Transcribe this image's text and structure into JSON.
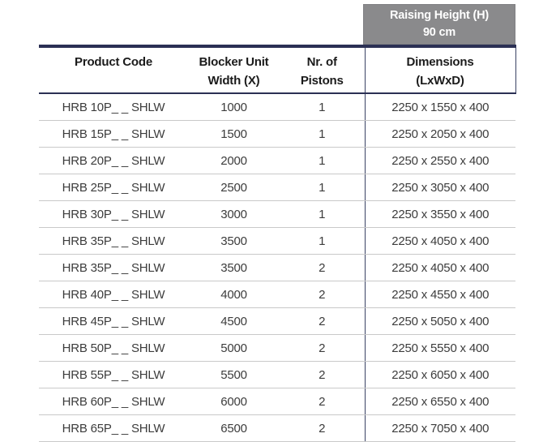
{
  "raising_box": {
    "title": "Raising Height (H)",
    "value": "90 cm"
  },
  "table": {
    "columns": [
      {
        "label": "Product Code"
      },
      {
        "label": "Blocker Unit\nWidth (X)"
      },
      {
        "label": "Nr. of\nPistons"
      },
      {
        "label": "Dimensions\n(LxWxD)"
      }
    ],
    "rows": [
      [
        "HRB 10P_ _ SHLW",
        "1000",
        "1",
        "2250 x 1550 x 400"
      ],
      [
        "HRB 15P_ _ SHLW",
        "1500",
        "1",
        "2250 x 2050 x 400"
      ],
      [
        "HRB 20P_ _ SHLW",
        "2000",
        "1",
        "2250 x 2550 x 400"
      ],
      [
        "HRB 25P_ _ SHLW",
        "2500",
        "1",
        "2250 x 3050 x 400"
      ],
      [
        "HRB 30P_ _ SHLW",
        "3000",
        "1",
        "2250 x 3550 x 400"
      ],
      [
        "HRB 35P_ _ SHLW",
        "3500",
        "1",
        "2250 x 4050 x 400"
      ],
      [
        "HRB 35P_ _ SHLW",
        "3500",
        "2",
        "2250 x 4050 x 400"
      ],
      [
        "HRB 40P_ _ SHLW",
        "4000",
        "2",
        "2250 x 4550 x 400"
      ],
      [
        "HRB 45P_ _ SHLW",
        "4500",
        "2",
        "2250 x 5050 x 400"
      ],
      [
        "HRB 50P_ _ SHLW",
        "5000",
        "2",
        "2250 x 5550 x 400"
      ],
      [
        "HRB 55P_ _ SHLW",
        "5500",
        "2",
        "2250 x 6050 x 400"
      ],
      [
        "HRB 60P_ _ SHLW",
        "6000",
        "2",
        "2250 x 6550 x 400"
      ],
      [
        "HRB 65P_ _ SHLW",
        "6500",
        "2",
        "2250 x 7050 x 400"
      ]
    ]
  },
  "colors": {
    "accent_navy": "#2b3054",
    "header_box_gray": "#8a8a8c",
    "row_divider_gray": "#c9c9c9",
    "column_divider_navy": "#3a4264",
    "header_text": "#1b1b1b",
    "cell_text": "#3c3c3c"
  }
}
